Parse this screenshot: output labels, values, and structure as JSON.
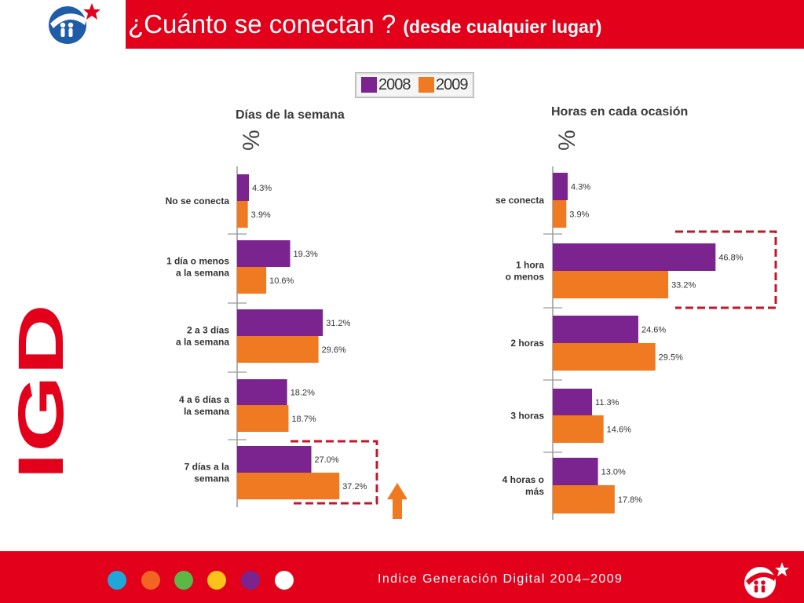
{
  "slide": {
    "title_main": "¿Cuánto se conectan ? ",
    "title_sub": "(desde cualquier lugar)",
    "side_logo_text": "IGD",
    "footer": "Indice Generación Digital 2004–2009"
  },
  "legend": [
    {
      "label": "2008",
      "color": "#7b2490"
    },
    {
      "label": "2009",
      "color": "#f07a22"
    }
  ],
  "colors": {
    "banner": "#e2001a",
    "dots": [
      "#1ea7d8",
      "#f26522",
      "#5bb848",
      "#fbc31a",
      "#7b2490",
      "#ffffff"
    ]
  },
  "chart_data": [
    {
      "type": "bar",
      "orientation": "horizontal",
      "title": "Días de la semana",
      "ylabel": "%",
      "categories": [
        "No se conecta",
        "1 día o menos a la semana",
        "2 a 3 días a la semana",
        "4 a 6 días a la semana",
        "7 días a la semana"
      ],
      "category_lines": [
        [
          "No se conecta"
        ],
        [
          "1 día o menos",
          "a la semana"
        ],
        [
          "2 a 3 días",
          "a la semana"
        ],
        [
          "4 a 6 días a",
          "la semana"
        ],
        [
          "7 días a la",
          "semana"
        ]
      ],
      "series": [
        {
          "name": "2008",
          "values": [
            4.3,
            19.3,
            31.2,
            18.2,
            27.0
          ],
          "labels": [
            "4.3%",
            "19.3%",
            "31.2%",
            "18.2%",
            "27.0%"
          ]
        },
        {
          "name": "2009",
          "values": [
            3.9,
            10.6,
            29.6,
            18.7,
            37.2
          ],
          "labels": [
            "3.9%",
            "10.6%",
            "29.6%",
            "18.7%",
            "37.2%"
          ]
        }
      ],
      "highlight": "7 días a la semana",
      "increase_arrow": true
    },
    {
      "type": "bar",
      "orientation": "horizontal",
      "title": "Horas en cada ocasión",
      "ylabel": "%",
      "categories": [
        "se conecta",
        "1 hora o menos",
        "2 horas",
        "3 horas",
        "4 horas o más"
      ],
      "category_lines": [
        [
          "se conecta"
        ],
        [
          "1 hora",
          "o menos"
        ],
        [
          "2 horas"
        ],
        [
          "3 horas"
        ],
        [
          "4 horas o",
          "más"
        ]
      ],
      "series": [
        {
          "name": "2008",
          "values": [
            4.3,
            46.8,
            24.6,
            11.3,
            13.0
          ],
          "labels": [
            "4.3%",
            "46.8%",
            "24.6%",
            "11.3%",
            "13.0%"
          ]
        },
        {
          "name": "2009",
          "values": [
            3.9,
            33.2,
            29.5,
            14.6,
            17.8
          ],
          "labels": [
            "3.9%",
            "33.2%",
            "29.5%",
            "14.6%",
            "17.8%"
          ]
        }
      ],
      "highlight": "1 hora o menos",
      "increase_arrow": false
    }
  ]
}
